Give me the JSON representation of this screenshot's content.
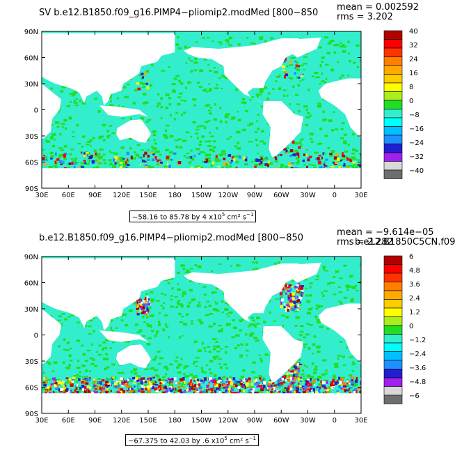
{
  "panels": [
    {
      "id": "top",
      "title": "SV b.e12.B1850.f09_g16.PIMP4−pliomip2.modMed [800−850",
      "mean_label": "mean = 0.002592",
      "rms_label": "rms = 3.202",
      "extra_label": "",
      "caption_range": "−58.16 to 85.78 by 4 x10",
      "caption_unit": "cm² s",
      "legend_labels": [
        "40",
        "32",
        "24",
        "16",
        "8",
        "0",
        "−8",
        "−16",
        "−24",
        "−32",
        "−40"
      ]
    },
    {
      "id": "bottom",
      "title": "b.e12.B1850.f09_g16.PIMP4−pliomip2.modMed [800−850",
      "mean_label": "mean = −9.614e−05",
      "rms_label": "rms = 2.282",
      "extra_label": "b.e12.B1850C5CN.f09",
      "caption_range": "−67.375 to 42.03 by .6 x10",
      "caption_unit": "cm² s",
      "legend_labels": [
        "6",
        "4.8",
        "3.6",
        "2.4",
        "1.2",
        "0",
        "−1.2",
        "−2.4",
        "−3.6",
        "−4.8",
        "−6"
      ]
    }
  ],
  "lat_labels": [
    "90N",
    "60N",
    "30N",
    "0",
    "30S",
    "60S",
    "90S"
  ],
  "lon_labels": [
    "30E",
    "60E",
    "90E",
    "120E",
    "150E",
    "180",
    "150W",
    "120W",
    "90W",
    "60W",
    "30W",
    "0",
    "30E"
  ],
  "colors": {
    "ocean_base": "#33eecc",
    "land": "#ffffff",
    "palette": [
      "#ffffff",
      "#6e6e6e",
      "#d9d9d9",
      "#a020f0",
      "#2020d0",
      "#1e90ff",
      "#00bfff",
      "#00ffff",
      "#33eecc",
      "#22dd22",
      "#aaee22",
      "#ffff00",
      "#ffcc00",
      "#ffaa00",
      "#ff8000",
      "#ff3300",
      "#ff0000",
      "#b00000"
    ],
    "legend_colors": [
      "#b00000",
      "#ff0000",
      "#ff3300",
      "#ff8000",
      "#ffaa00",
      "#ffcc00",
      "#ffff00",
      "#aaee22",
      "#22dd22",
      "#33eecc",
      "#00ffff",
      "#00bfff",
      "#1e90ff",
      "#2020d0",
      "#a020f0",
      "#d9d9d9",
      "#6e6e6e"
    ]
  }
}
